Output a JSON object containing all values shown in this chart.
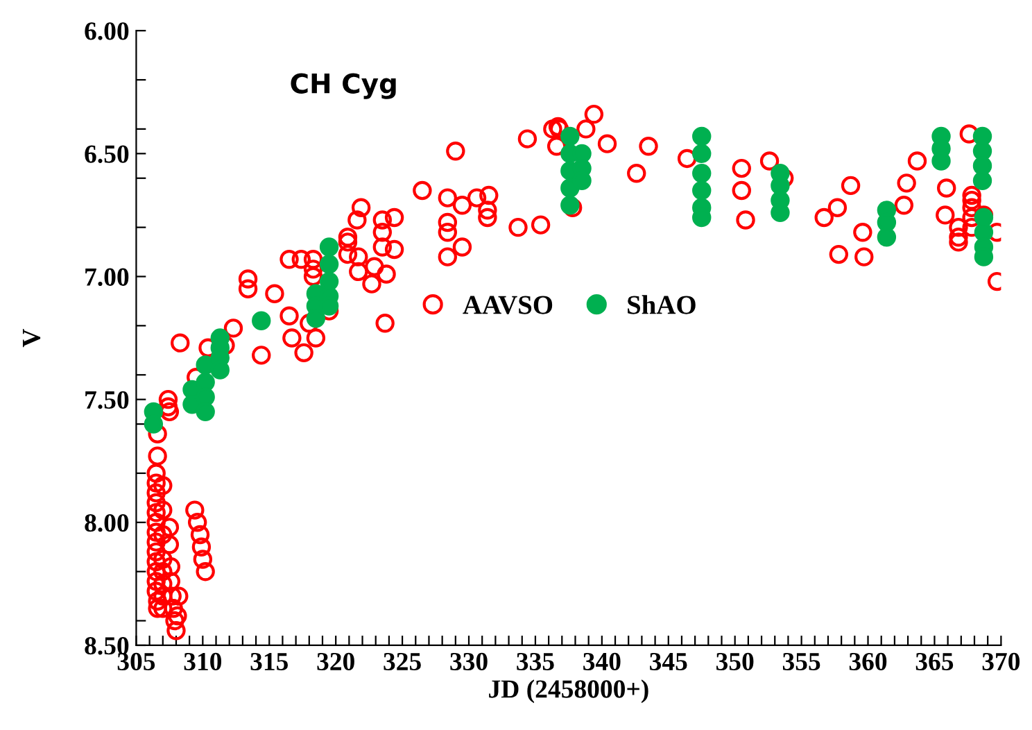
{
  "chart_data": {
    "type": "scatter",
    "title": "CH Cyg",
    "xlabel": "JD (2458000+)",
    "ylabel": "V",
    "xlim": [
      305,
      370
    ],
    "ylim": [
      8.5,
      6.0
    ],
    "xticks": [
      305,
      {
        "value": 306,
        "label": null
      },
      {
        "value": 307,
        "label": null
      },
      {
        "value": 308,
        "label": null
      },
      {
        "value": 309,
        "label": null
      },
      310,
      {
        "value": 311,
        "label": null
      },
      {
        "value": 312,
        "label": null
      },
      {
        "value": 313,
        "label": null
      },
      {
        "value": 314,
        "label": null
      },
      315,
      {
        "value": 316,
        "label": null
      },
      {
        "value": 317,
        "label": null
      },
      {
        "value": 318,
        "label": null
      },
      {
        "value": 319,
        "label": null
      },
      320,
      {
        "value": 321,
        "label": null
      },
      {
        "value": 322,
        "label": null
      },
      {
        "value": 323,
        "label": null
      },
      {
        "value": 324,
        "label": null
      },
      325,
      {
        "value": 326,
        "label": null
      },
      {
        "value": 327,
        "label": null
      },
      {
        "value": 328,
        "label": null
      },
      {
        "value": 329,
        "label": null
      },
      330,
      {
        "value": 331,
        "label": null
      },
      {
        "value": 332,
        "label": null
      },
      {
        "value": 333,
        "label": null
      },
      {
        "value": 334,
        "label": null
      },
      335,
      {
        "value": 336,
        "label": null
      },
      {
        "value": 337,
        "label": null
      },
      {
        "value": 338,
        "label": null
      },
      {
        "value": 339,
        "label": null
      },
      340,
      {
        "value": 341,
        "label": null
      },
      {
        "value": 342,
        "label": null
      },
      {
        "value": 343,
        "label": null
      },
      {
        "value": 344,
        "label": null
      },
      345,
      {
        "value": 346,
        "label": null
      },
      {
        "value": 347,
        "label": null
      },
      {
        "value": 348,
        "label": null
      },
      {
        "value": 349,
        "label": null
      },
      350,
      {
        "value": 351,
        "label": null
      },
      {
        "value": 352,
        "label": null
      },
      {
        "value": 353,
        "label": null
      },
      {
        "value": 354,
        "label": null
      },
      355,
      {
        "value": 356,
        "label": null
      },
      {
        "value": 357,
        "label": null
      },
      {
        "value": 358,
        "label": null
      },
      {
        "value": 359,
        "label": null
      },
      360,
      {
        "value": 361,
        "label": null
      },
      {
        "value": 362,
        "label": null
      },
      {
        "value": 363,
        "label": null
      },
      {
        "value": 364,
        "label": null
      },
      365,
      {
        "value": 366,
        "label": null
      },
      {
        "value": 367,
        "label": null
      },
      {
        "value": 368,
        "label": null
      },
      {
        "value": 369,
        "label": null
      },
      370
    ],
    "yticks": [
      {
        "value": 6.0,
        "label": "6.00"
      },
      {
        "value": 6.2,
        "label": null
      },
      {
        "value": 6.4,
        "label": null
      },
      {
        "value": 6.5,
        "label": "6.50"
      },
      {
        "value": 6.6,
        "label": null
      },
      {
        "value": 6.8,
        "label": null
      },
      {
        "value": 7.0,
        "label": "7.00"
      },
      {
        "value": 7.2,
        "label": null
      },
      {
        "value": 7.4,
        "label": null
      },
      {
        "value": 7.5,
        "label": "7.50"
      },
      {
        "value": 7.6,
        "label": null
      },
      {
        "value": 7.8,
        "label": null
      },
      {
        "value": 8.0,
        "label": "8.00"
      },
      {
        "value": 8.2,
        "label": null
      },
      {
        "value": 8.4,
        "label": null
      },
      {
        "value": 8.5,
        "label": "8.50"
      }
    ],
    "grid": false,
    "legend": "center",
    "series": [
      {
        "name": "AAVSO",
        "color": "#ff0000",
        "marker": "circle",
        "x": [
          306.6,
          306.6,
          306.5,
          306.5,
          306.5,
          306.5,
          306.5,
          306.5,
          306.5,
          306.5,
          306.5,
          306.5,
          306.5,
          306.5,
          306.5,
          306.6,
          306.6,
          307.0,
          307.0,
          307.0,
          307.0,
          307.0,
          307.0,
          307.0,
          307.0,
          307.5,
          307.5,
          307.6,
          307.6,
          307.7,
          307.8,
          307.9,
          308.0,
          308.1,
          308.2,
          307.4,
          307.4,
          307.5,
          308.3,
          309.4,
          309.6,
          309.8,
          309.9,
          310.0,
          310.2,
          309.5,
          310.4,
          311.7,
          312.3,
          313.4,
          313.4,
          314.4,
          315.4,
          316.5,
          317.4,
          316.5,
          316.7,
          317.6,
          318.0,
          318.5,
          318.3,
          318.3,
          318.3,
          319.5,
          320.9,
          320.9,
          320.9,
          321.6,
          321.9,
          321.7,
          321.7,
          322.7,
          322.9,
          323.5,
          323.5,
          323.5,
          323.8,
          323.7,
          324.4,
          324.4,
          326.5,
          328.4,
          328.4,
          328.4,
          328.4,
          329.0,
          329.5,
          329.5,
          330.6,
          331.5,
          331.4,
          331.4,
          333.7,
          335.4,
          334.4,
          336.3,
          336.7,
          336.8,
          336.6,
          337.8,
          338.8,
          339.4,
          340.4,
          342.6,
          343.5,
          346.4,
          350.5,
          350.5,
          350.8,
          352.6,
          353.7,
          356.7,
          357.7,
          358.7,
          357.8,
          359.6,
          359.7,
          362.7,
          362.9,
          363.7,
          365.9,
          365.8,
          367.6,
          366.8,
          366.8,
          366.8,
          367.8,
          367.8,
          367.8,
          367.8,
          367.8,
          368.7,
          369.7,
          369.7
        ],
        "values": [
          7.64,
          7.73,
          7.8,
          7.84,
          7.88,
          7.92,
          7.96,
          8.0,
          8.04,
          8.08,
          8.12,
          8.16,
          8.2,
          8.24,
          8.28,
          8.32,
          8.35,
          7.85,
          7.95,
          8.05,
          8.15,
          8.2,
          8.25,
          8.3,
          8.35,
          8.02,
          8.09,
          8.18,
          8.24,
          8.3,
          8.35,
          8.4,
          8.44,
          8.38,
          8.3,
          7.5,
          7.53,
          7.55,
          7.27,
          7.95,
          8.0,
          8.05,
          8.1,
          8.15,
          8.2,
          7.41,
          7.29,
          7.28,
          7.21,
          7.01,
          7.05,
          7.32,
          7.07,
          6.93,
          6.93,
          7.16,
          7.25,
          7.31,
          7.19,
          7.25,
          6.93,
          6.97,
          7.0,
          7.14,
          6.84,
          6.86,
          6.91,
          6.77,
          6.72,
          6.98,
          6.92,
          7.03,
          6.96,
          6.77,
          6.82,
          6.88,
          6.99,
          7.19,
          6.76,
          6.89,
          6.65,
          6.68,
          6.78,
          6.82,
          6.92,
          6.49,
          6.71,
          6.88,
          6.68,
          6.67,
          6.73,
          6.76,
          6.8,
          6.79,
          6.44,
          6.4,
          6.39,
          6.4,
          6.47,
          6.72,
          6.4,
          6.34,
          6.46,
          6.58,
          6.47,
          6.52,
          6.56,
          6.65,
          6.77,
          6.53,
          6.6,
          6.76,
          6.72,
          6.63,
          6.91,
          6.82,
          6.92,
          6.71,
          6.62,
          6.53,
          6.64,
          6.75,
          6.42,
          6.8,
          6.84,
          6.86,
          6.67,
          6.69,
          6.72,
          6.76,
          6.8,
          6.75,
          6.82,
          7.02
        ]
      },
      {
        "name": "ShAO",
        "color": "#00b050",
        "marker": "circle",
        "x": [
          306.3,
          306.3,
          309.2,
          309.2,
          310.2,
          310.2,
          310.2,
          310.2,
          311.3,
          311.3,
          311.3,
          311.3,
          314.4,
          318.5,
          318.5,
          318.5,
          319.5,
          319.5,
          319.5,
          319.5,
          319.5,
          337.6,
          337.6,
          337.6,
          337.6,
          337.6,
          338.5,
          338.5,
          338.5,
          347.5,
          347.5,
          347.5,
          347.5,
          347.5,
          347.5,
          353.4,
          353.4,
          353.4,
          353.4,
          361.4,
          361.4,
          361.4,
          365.5,
          365.5,
          365.5,
          368.6,
          368.6,
          368.6,
          368.6,
          368.7,
          368.7,
          368.7,
          368.7
        ],
        "values": [
          7.55,
          7.6,
          7.46,
          7.52,
          7.36,
          7.43,
          7.49,
          7.55,
          7.25,
          7.29,
          7.33,
          7.38,
          7.18,
          7.07,
          7.12,
          7.17,
          6.88,
          6.95,
          7.02,
          7.08,
          7.12,
          6.43,
          6.5,
          6.57,
          6.64,
          6.71,
          6.5,
          6.56,
          6.61,
          6.43,
          6.5,
          6.58,
          6.65,
          6.72,
          6.76,
          6.58,
          6.63,
          6.69,
          6.74,
          6.73,
          6.78,
          6.84,
          6.43,
          6.48,
          6.53,
          6.43,
          6.49,
          6.55,
          6.61,
          6.76,
          6.82,
          6.88,
          6.92
        ]
      }
    ]
  }
}
